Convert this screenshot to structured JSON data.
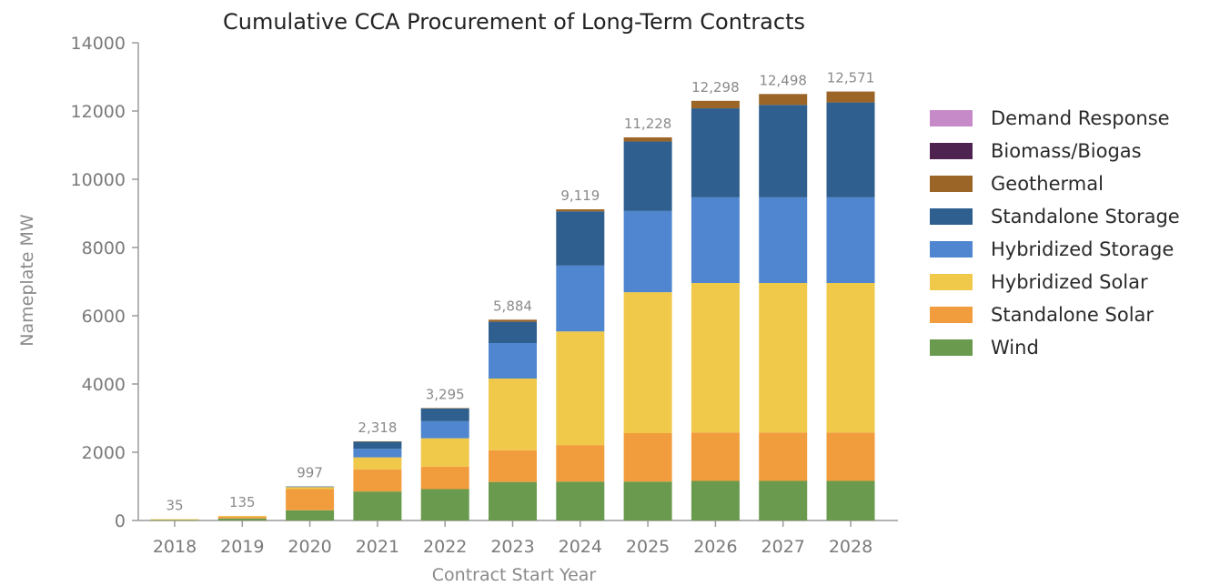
{
  "chart_data": {
    "type": "bar",
    "stacked": true,
    "title": "Cumulative CCA Procurement of Long-Term Contracts",
    "xlabel": "Contract Start Year",
    "ylabel": "Nameplate MW",
    "ylim": [
      0,
      14000
    ],
    "yticks": [
      0,
      2000,
      4000,
      6000,
      8000,
      10000,
      12000,
      14000
    ],
    "ytick_labels": [
      "0",
      "2000",
      "4000",
      "6000",
      "8000",
      "10000",
      "12000",
      "14000"
    ],
    "grid": false,
    "legend_position": "right",
    "categories": [
      "2018",
      "2019",
      "2020",
      "2021",
      "2022",
      "2023",
      "2024",
      "2025",
      "2026",
      "2027",
      "2028"
    ],
    "totals": [
      35,
      135,
      997,
      2318,
      3295,
      5884,
      9119,
      11228,
      12298,
      12498,
      12571
    ],
    "total_labels": [
      "35",
      "135",
      "997",
      "2,318",
      "3,295",
      "5,884",
      "9,119",
      "11,228",
      "12,298",
      "12,498",
      "12,571"
    ],
    "series": [
      {
        "name": "Wind",
        "color": "#6a9a4e",
        "values": [
          20,
          60,
          300,
          850,
          920,
          1130,
          1140,
          1140,
          1160,
          1160,
          1160
        ]
      },
      {
        "name": "Standalone Solar",
        "color": "#f29d3d",
        "values": [
          10,
          55,
          620,
          650,
          660,
          930,
          1070,
          1420,
          1420,
          1420,
          1420
        ]
      },
      {
        "name": "Hybridized Solar",
        "color": "#f0c94a",
        "values": [
          5,
          20,
          60,
          350,
          830,
          2100,
          3330,
          4130,
          4380,
          4380,
          4380
        ]
      },
      {
        "name": "Hybridized Storage",
        "color": "#4f86cf",
        "values": [
          0,
          0,
          0,
          250,
          500,
          1040,
          1930,
          2380,
          2510,
          2510,
          2510
        ]
      },
      {
        "name": "Standalone Storage",
        "color": "#2f5f8f",
        "values": [
          0,
          0,
          17,
          208,
          375,
          624,
          1589,
          2038,
          2608,
          2708,
          2781
        ]
      },
      {
        "name": "Geothermal",
        "color": "#9a6527",
        "values": [
          0,
          0,
          0,
          10,
          10,
          60,
          60,
          120,
          220,
          320,
          320
        ]
      },
      {
        "name": "Biomass/Biogas",
        "color": "#4e2350",
        "values": [
          0,
          0,
          0,
          0,
          0,
          0,
          0,
          0,
          0,
          0,
          0
        ]
      },
      {
        "name": "Demand Response",
        "color": "#c68ac8",
        "values": [
          0,
          0,
          0,
          0,
          0,
          0,
          0,
          0,
          0,
          0,
          0
        ]
      }
    ]
  }
}
